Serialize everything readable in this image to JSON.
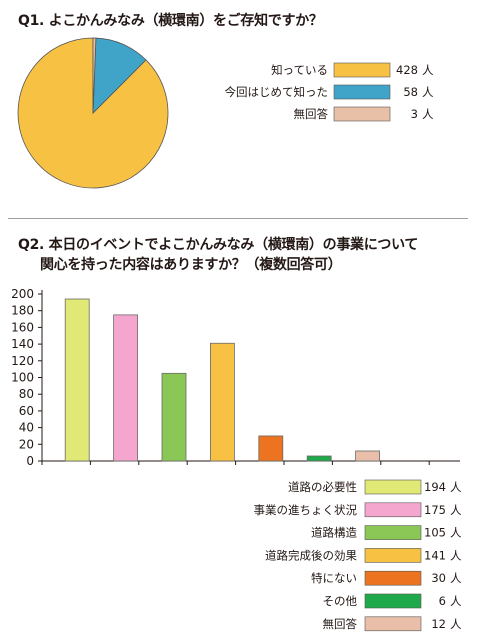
{
  "q1": {
    "title": "Q1. よこかんみなみ（横環南）をご存知ですか？",
    "unit": "人",
    "chart_data": {
      "type": "pie",
      "categories": [
        "知っている",
        "今回はじめて知った",
        "無回答"
      ],
      "values": [
        428,
        58,
        3
      ],
      "colors": [
        "#F7C244",
        "#3FA4C8",
        "#E8C0A8"
      ],
      "legend": "right"
    }
  },
  "q2": {
    "title_line1": "Q2. 本日のイベントでよこかんみなみ（横環南）の事業について",
    "title_line2": "関心を持った内容はありますか？（複数回答可）",
    "unit": "人",
    "chart_data": {
      "type": "bar",
      "categories": [
        "道路の必要性",
        "事業の進ちょく状況",
        "道路構造",
        "道路完成後の効果",
        "特にない",
        "その他",
        "無回答"
      ],
      "values": [
        194,
        175,
        105,
        141,
        30,
        6,
        12
      ],
      "colors": [
        "#E0E876",
        "#F4A6CF",
        "#8BC756",
        "#F7C244",
        "#EC7421",
        "#20A94A",
        "#E9BFA9"
      ],
      "ylim": [
        0,
        200
      ],
      "yticks": [
        0,
        20,
        40,
        60,
        80,
        100,
        120,
        140,
        160,
        180,
        200
      ],
      "grid": false,
      "legend": "bottom-right"
    }
  }
}
